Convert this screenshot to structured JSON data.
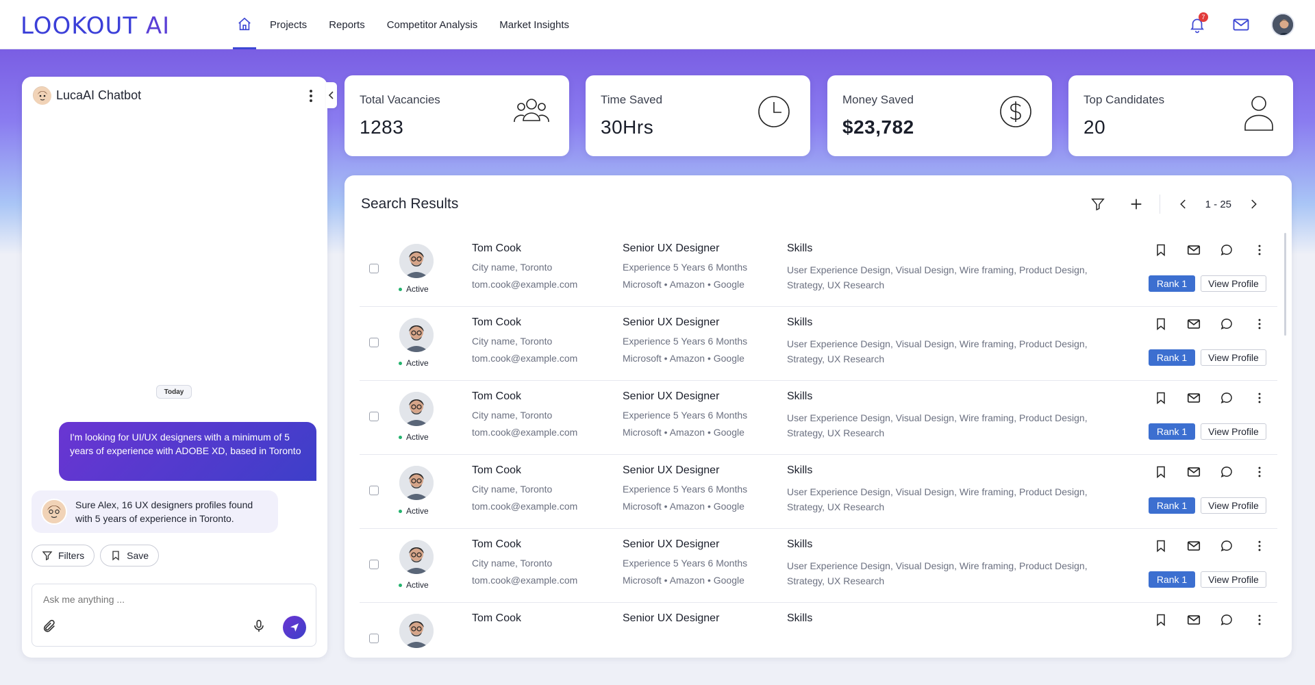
{
  "brand": {
    "logo_main": "LOOKOUT",
    "logo_ai": " AI"
  },
  "nav": {
    "home_label": "Home",
    "links": [
      "Projects",
      "Reports",
      "Competitor Analysis",
      "Market Insights"
    ]
  },
  "top": {
    "notification_count": "7"
  },
  "chat": {
    "title": "LucaAI Chatbot",
    "day_label": "Today",
    "user_message": "I'm looking for UI/UX designers with a minimum of 5 years of experience with ADOBE XD, based in Toronto",
    "bot_message": "Sure Alex, 16 UX designers profiles found with 5 years of experience in Toronto.",
    "chips": {
      "filters": "Filters",
      "save": "Save"
    },
    "input_placeholder": "Ask me anything ..."
  },
  "stats": [
    {
      "label": "Total Vacancies",
      "value": "1283",
      "icon": "people-group-icon"
    },
    {
      "label": "Time Saved",
      "value": "30Hrs",
      "icon": "clock-icon"
    },
    {
      "label": "Money Saved",
      "value": "$23,782",
      "icon": "dollar-circle-icon"
    },
    {
      "label": "Top Candidates",
      "value": "20",
      "icon": "user-icon"
    }
  ],
  "results": {
    "title": "Search Results",
    "pagination": "1 - 25",
    "rows": [
      {
        "name": "Tom Cook",
        "city": "City name, Toronto",
        "email": "tom.cook@example.com",
        "status": "Active",
        "role": "Senior UX Designer",
        "experience": "Experience 5 Years 6 Months",
        "companies": "Microsoft • Amazon • Google",
        "skills_header": "Skills",
        "skills": "User Experience Design, Visual Design, Wire framing, Product Design, Strategy, UX Research",
        "rank": "Rank 1",
        "view": "View Profile"
      },
      {
        "name": "Tom Cook",
        "city": "City name, Toronto",
        "email": "tom.cook@example.com",
        "status": "Active",
        "role": "Senior UX Designer",
        "experience": "Experience 5 Years 6 Months",
        "companies": "Microsoft • Amazon • Google",
        "skills_header": "Skills",
        "skills": "User Experience Design, Visual Design, Wire framing, Product Design, Strategy, UX Research",
        "rank": "Rank 1",
        "view": "View Profile"
      },
      {
        "name": "Tom Cook",
        "city": "City name, Toronto",
        "email": "tom.cook@example.com",
        "status": "Active",
        "role": "Senior UX Designer",
        "experience": "Experience 5 Years 6 Months",
        "companies": "Microsoft • Amazon • Google",
        "skills_header": "Skills",
        "skills": "User Experience Design, Visual Design, Wire framing, Product Design, Strategy, UX Research",
        "rank": "Rank 1",
        "view": "View Profile"
      },
      {
        "name": "Tom Cook",
        "city": "City name, Toronto",
        "email": "tom.cook@example.com",
        "status": "Active",
        "role": "Senior UX Designer",
        "experience": "Experience 5 Years 6 Months",
        "companies": "Microsoft • Amazon • Google",
        "skills_header": "Skills",
        "skills": "User Experience Design, Visual Design, Wire framing, Product Design, Strategy, UX Research",
        "rank": "Rank 1",
        "view": "View Profile"
      },
      {
        "name": "Tom Cook",
        "city": "City name, Toronto",
        "email": "tom.cook@example.com",
        "status": "Active",
        "role": "Senior UX Designer",
        "experience": "Experience 5 Years 6 Months",
        "companies": "Microsoft • Amazon • Google",
        "skills_header": "Skills",
        "skills": "User Experience Design, Visual Design, Wire framing, Product Design, Strategy, UX Research",
        "rank": "Rank 1",
        "view": "View Profile"
      },
      {
        "name": "Tom Cook",
        "city": "",
        "email": "",
        "status": "",
        "role": "Senior UX Designer",
        "experience": "",
        "companies": "",
        "skills_header": "Skills",
        "skills": "",
        "rank": "",
        "view": ""
      }
    ]
  },
  "colors": {
    "accent": "#3d47d4",
    "brand_purple": "#6a35d2",
    "rank_blue": "#3c6fd0",
    "active_green": "#23b26d"
  }
}
